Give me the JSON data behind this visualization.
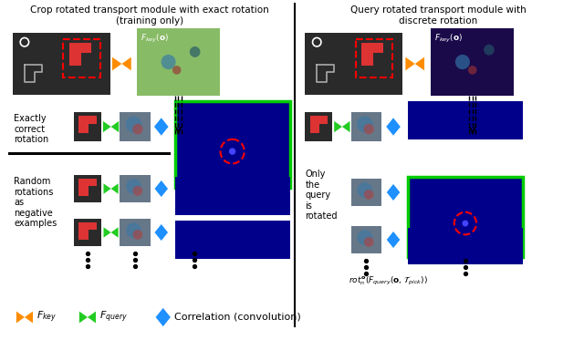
{
  "title_left": "Crop rotated transport module with exact rotation\n(training only)",
  "title_right": "Query rotated transport module with\ndiscrete rotation",
  "left_label_1": "Exactly\ncorrect\nrotation",
  "left_label_2": "Random\nrotations\nas\nnegative\nexamples",
  "right_label": "Only\nthe\nquery\nis\nrotated",
  "bg_color": "white",
  "navy": "#00008B",
  "green_border": "#00CC00",
  "orange_bowtie": "#FF8C00",
  "green_bowtie": "#22CC22",
  "blue_diamond": "#1E90FF",
  "scene_bg": "#2a2a2a",
  "red_dash": "#CC0000",
  "feat_green_bg": "#88BB66",
  "feat_purple_bg": "#1a0a4a",
  "small_feat_bg": "#667788"
}
